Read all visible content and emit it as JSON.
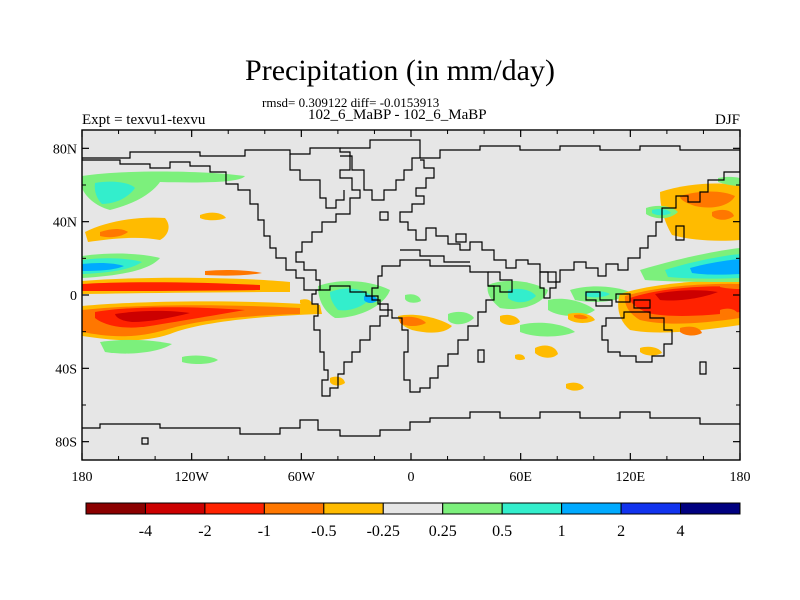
{
  "title": "Precipitation (in mm/day)",
  "stats": "rmsd= 0.309122 diff= -0.0153913",
  "subtitle": "102_6_MaBP - 102_6_MaBP",
  "left_label": "Expt = texvu1-texvu",
  "right_label": "DJF",
  "colors": {
    "ocean_background": "#e6e6e6",
    "coastline": "#000000"
  },
  "map": {
    "projection": "cylindrical-equidistant",
    "lon_range": [
      -180,
      180
    ],
    "lat_range": [
      -90,
      90
    ],
    "lat_ticks": [
      {
        "value": 80,
        "label": "80N"
      },
      {
        "value": 40,
        "label": "40N"
      },
      {
        "value": 0,
        "label": "0"
      },
      {
        "value": -40,
        "label": "40S"
      },
      {
        "value": -80,
        "label": "80S"
      }
    ],
    "lon_ticks": [
      {
        "value": -180,
        "label": "180"
      },
      {
        "value": -120,
        "label": "120W"
      },
      {
        "value": -60,
        "label": "60W"
      },
      {
        "value": 0,
        "label": "0"
      },
      {
        "value": 60,
        "label": "60E"
      },
      {
        "value": 120,
        "label": "120E"
      },
      {
        "value": 180,
        "label": "180"
      }
    ]
  },
  "colorbar": {
    "colors": [
      "#8b0000",
      "#cc0000",
      "#ff2200",
      "#ff7700",
      "#ffbb00",
      "#e6e6e6",
      "#7cf07c",
      "#33eecc",
      "#00aaff",
      "#1133ee",
      "#000080"
    ],
    "labels": [
      "-4",
      "-2",
      "-1",
      "-0.5",
      "-0.25",
      "0.25",
      "0.5",
      "1",
      "2",
      "4"
    ]
  },
  "chart_data": {
    "type": "heatmap",
    "title": "Precipitation (in mm/day)",
    "variable": "precipitation difference",
    "units": "mm/day",
    "season": "DJF",
    "levels": [
      -4,
      -2,
      -1,
      -0.5,
      -0.25,
      0.25,
      0.5,
      1,
      2,
      4
    ],
    "x_range": [
      -180,
      180
    ],
    "y_range": [
      -90,
      90
    ],
    "features": [
      {
        "lon": -150,
        "lat": -12,
        "value": -2
      },
      {
        "lon": -160,
        "lat": 3,
        "value": -1
      },
      {
        "lon": -165,
        "lat": 12,
        "value": 1
      },
      {
        "lon": -160,
        "lat": 23,
        "value": 0.5
      },
      {
        "lon": -150,
        "lat": 32,
        "value": -0.5
      },
      {
        "lon": -120,
        "lat": 6,
        "value": -0.5
      },
      {
        "lon": -150,
        "lat": 60,
        "value": 0.5
      },
      {
        "lon": -35,
        "lat": -5,
        "value": 1
      },
      {
        "lon": 0,
        "lat": -12,
        "value": -0.5
      },
      {
        "lon": 25,
        "lat": -10,
        "value": 0.5
      },
      {
        "lon": 50,
        "lat": -2,
        "value": 1
      },
      {
        "lon": 70,
        "lat": -5,
        "value": 0.5
      },
      {
        "lon": 50,
        "lat": -30,
        "value": -0.5
      },
      {
        "lon": 155,
        "lat": -2,
        "value": -2
      },
      {
        "lon": 160,
        "lat": 12,
        "value": 1
      },
      {
        "lon": 165,
        "lat": 50,
        "value": -0.5
      },
      {
        "lon": 160,
        "lat": 35,
        "value": -0.5
      },
      {
        "lon": 135,
        "lat": 45,
        "value": 0.5
      }
    ]
  }
}
